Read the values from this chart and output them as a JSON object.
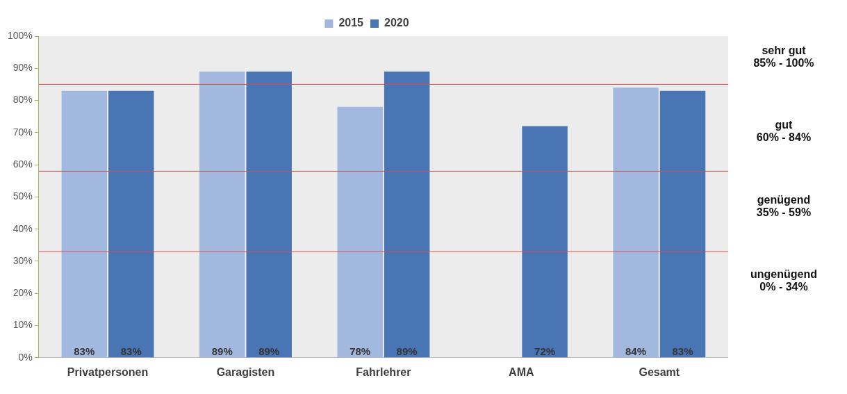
{
  "chart_data": {
    "type": "bar",
    "categories": [
      "Privatpersonen",
      "Garagisten",
      "Fahrlehrer",
      "AMA",
      "Gesamt"
    ],
    "series": [
      {
        "name": "2015",
        "color": "#a3b8df",
        "values": [
          83,
          89,
          78,
          null,
          84
        ]
      },
      {
        "name": "2020",
        "color": "#4a75b5",
        "values": [
          83,
          89,
          89,
          72,
          83
        ]
      }
    ],
    "ylim": [
      0,
      100
    ],
    "yticks": [
      {
        "value": 0,
        "label": "0%"
      },
      {
        "value": 10,
        "label": "10%"
      },
      {
        "value": 20,
        "label": "20%"
      },
      {
        "value": 30,
        "label": "30%"
      },
      {
        "value": 40,
        "label": "40%"
      },
      {
        "value": 50,
        "label": "50%"
      },
      {
        "value": 60,
        "label": "60%"
      },
      {
        "value": 70,
        "label": "70%"
      },
      {
        "value": 80,
        "label": "80%"
      },
      {
        "value": 90,
        "label": "90%"
      },
      {
        "value": 100,
        "label": "100%"
      }
    ],
    "value_labels": [
      [
        "83%",
        "89%",
        "78%",
        null,
        "84%"
      ],
      [
        "83%",
        "89%",
        "89%",
        "72%",
        "83%"
      ]
    ],
    "ref_lines": [
      {
        "axis": "y",
        "value": 85,
        "color": "#d05050"
      },
      {
        "axis": "y",
        "value": 58,
        "color": "#d05050"
      },
      {
        "axis": "y",
        "value": 33,
        "color": "#d05050"
      }
    ],
    "annotations": [
      "sehr gut\n85% - 100%",
      "gut\n60% - 84%",
      "genügend\n35% - 59%",
      "ungenügend\n0% - 34%"
    ],
    "grid": false,
    "legend": "top"
  }
}
